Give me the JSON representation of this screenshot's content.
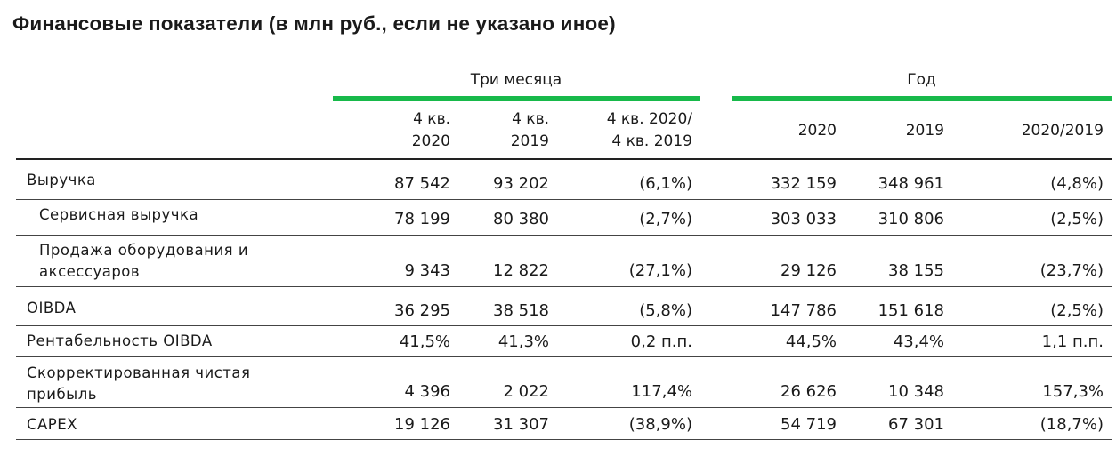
{
  "title": "Финансовые показатели (в млн руб., если не указано иное)",
  "groups": {
    "three_months": "Три месяца",
    "year": "Год"
  },
  "columns": {
    "c1": [
      "4 кв.",
      "2020"
    ],
    "c2": [
      "4 кв.",
      "2019"
    ],
    "c3": [
      "4 кв. 2020/",
      "4 кв. 2019"
    ],
    "c4": "2020",
    "c5": "2019",
    "c6": "2020/2019"
  },
  "colors": {
    "accent": "#17b94a"
  },
  "rows": [
    {
      "label": [
        "Выручка"
      ],
      "values": [
        "87 542",
        "93 202",
        "(6,1%)",
        "332 159",
        "348 961",
        "(4,8%)"
      ]
    },
    {
      "label": [
        "Сервисная выручка"
      ],
      "values": [
        "78 199",
        "80 380",
        "(2,7%)",
        "303 033",
        "310 806",
        "(2,5%)"
      ]
    },
    {
      "label": [
        "Продажа оборудования и",
        "аксессуаров"
      ],
      "values": [
        "9 343",
        "12 822",
        "(27,1%)",
        "29 126",
        "38 155",
        "(23,7%)"
      ]
    },
    {
      "label": [
        "OIBDA"
      ],
      "values": [
        "36 295",
        "38 518",
        "(5,8%)",
        "147 786",
        "151 618",
        "(2,5%)"
      ]
    },
    {
      "label": [
        "Рентабельность OIBDA"
      ],
      "values": [
        "41,5%",
        "41,3%",
        "0,2 п.п.",
        "44,5%",
        "43,4%",
        "1,1 п.п."
      ]
    },
    {
      "label": [
        "Скорректированная чистая",
        "прибыль"
      ],
      "values": [
        "4 396",
        "2 022",
        "117,4%",
        "26 626",
        "10 348",
        "157,3%"
      ]
    },
    {
      "label": [
        "CAPEX"
      ],
      "values": [
        "19 126",
        "31 307",
        "(38,9%)",
        "54 719",
        "67 301",
        "(18,7%)"
      ]
    }
  ]
}
